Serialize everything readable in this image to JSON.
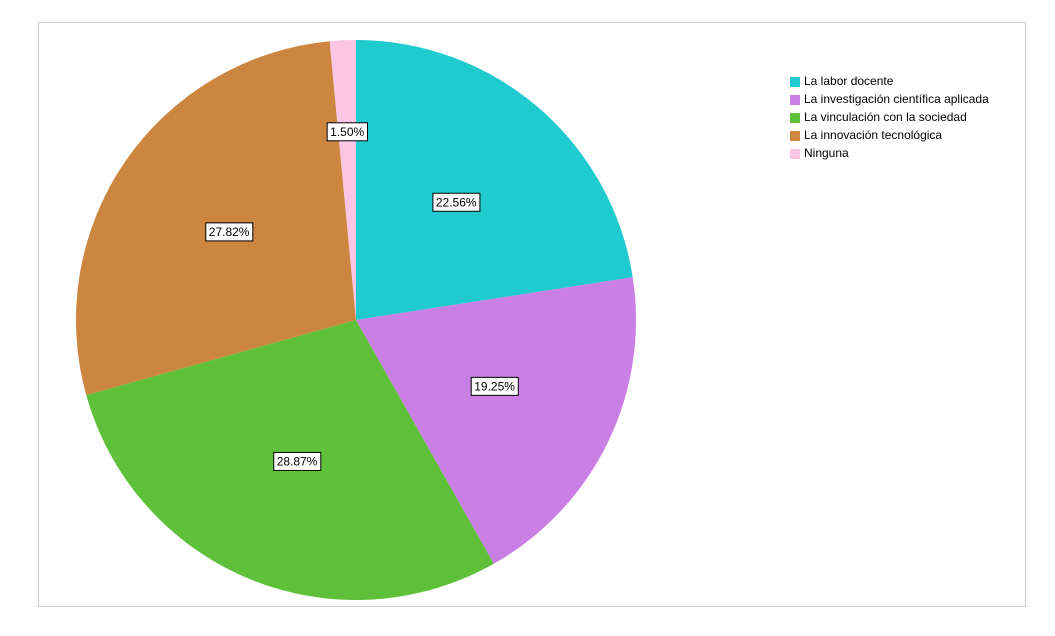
{
  "chart_data": {
    "type": "pie",
    "categories": [
      "La labor docente",
      "La investigación científica aplicada",
      "La vinculación con la sociedad",
      "La innovación tecnológica",
      "Ninguna"
    ],
    "values": [
      22.56,
      19.25,
      28.87,
      27.82,
      1.5
    ],
    "value_labels": [
      "22.56%",
      "19.25%",
      "28.87%",
      "27.82%",
      "1.50%"
    ],
    "colors": [
      "#1fcbcf",
      "#c97fe4",
      "#5fc13a",
      "#cc8640",
      "#fbc6e3"
    ],
    "legend": "top-right"
  }
}
